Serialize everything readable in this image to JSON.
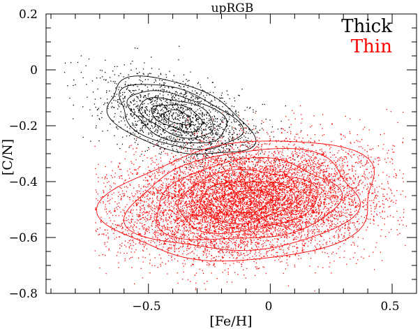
{
  "chart_data": {
    "type": "scatter",
    "title": "upRGB",
    "xlabel": "[Fe/H]",
    "ylabel": "[C/N]",
    "xlim": [
      -0.92,
      0.6
    ],
    "ylim": [
      -0.8,
      0.2
    ],
    "x_ticks": [
      -0.5,
      0,
      0.5
    ],
    "x_tick_labels": [
      "−0.5",
      "0",
      "0.5"
    ],
    "y_ticks": [
      0.2,
      0,
      -0.2,
      -0.4,
      -0.6,
      -0.8
    ],
    "y_tick_labels": [
      "0.2",
      "0",
      "−0.2",
      "−0.4",
      "−0.6",
      "−0.8"
    ],
    "grid": false,
    "legend_position": "top-right",
    "contours": true,
    "series": [
      {
        "name": "Thick",
        "color": "#000000",
        "center": [
          -0.38,
          -0.17
        ],
        "spread": [
          0.16,
          0.075
        ],
        "correlation": -0.45,
        "x_range": [
          -0.88,
          0.2
        ],
        "y_range": [
          -0.62,
          0.18
        ],
        "contour_levels": [
          0.35,
          0.65,
          0.95,
          1.25,
          1.55,
          1.85
        ]
      },
      {
        "name": "Thin",
        "color": "#ff0000",
        "center": [
          -0.1,
          -0.47
        ],
        "spread": [
          0.26,
          0.1
        ],
        "correlation": 0.18,
        "x_range": [
          -0.72,
          0.56
        ],
        "y_range": [
          -0.8,
          -0.12
        ],
        "contour_levels": [
          0.4,
          0.75,
          1.1,
          1.45,
          1.8,
          2.15
        ]
      }
    ]
  }
}
